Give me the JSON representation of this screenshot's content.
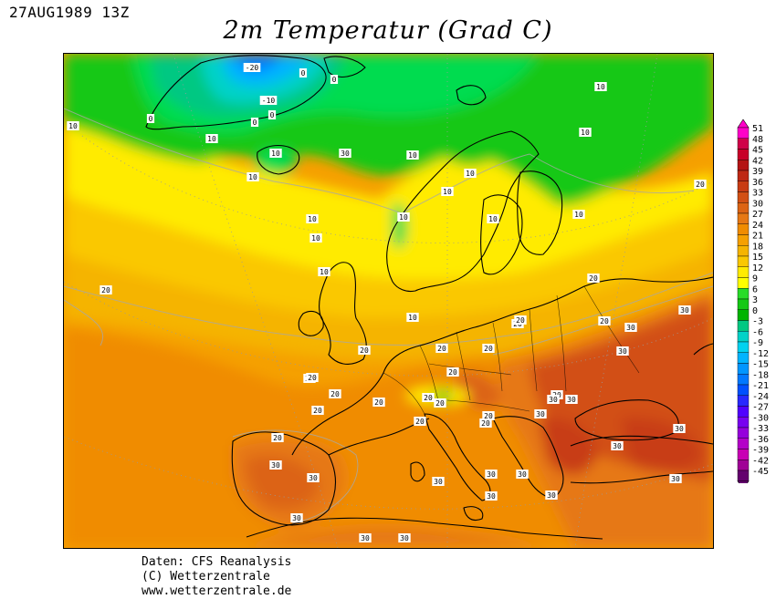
{
  "header": {
    "timestamp": "27AUG1989 13Z",
    "title": "2m Temperatur (Grad C)"
  },
  "map": {
    "region": "Europe",
    "variable": "2m temperature",
    "unit": "Grad C",
    "contour_labels": [
      "-20",
      "-10",
      "0",
      "0",
      "0",
      "0",
      "0",
      "10",
      "10",
      "10",
      "10",
      "10",
      "10",
      "10",
      "10",
      "10",
      "10",
      "10",
      "10",
      "10",
      "10",
      "10",
      "10",
      "20",
      "20",
      "20",
      "20",
      "20",
      "20",
      "20",
      "20",
      "20",
      "20",
      "20",
      "20",
      "20",
      "20",
      "20",
      "20",
      "20",
      "20",
      "20",
      "20",
      "20",
      "20",
      "30",
      "30",
      "30",
      "30",
      "30",
      "30",
      "30",
      "30",
      "30",
      "30",
      "30",
      "30",
      "30",
      "30",
      "30",
      "30",
      "30",
      "30",
      "30",
      "30"
    ]
  },
  "legend": {
    "values": [
      "51",
      "48",
      "45",
      "42",
      "39",
      "36",
      "33",
      "30",
      "27",
      "24",
      "21",
      "18",
      "15",
      "12",
      "9",
      "6",
      "3",
      "0",
      "-3",
      "-6",
      "-9",
      "-12",
      "-15",
      "-18",
      "-21",
      "-24",
      "-27",
      "-30",
      "-33",
      "-36",
      "-39",
      "-42",
      "-45"
    ],
    "colors": [
      "#ff00c8",
      "#d00048",
      "#c80028",
      "#b41414",
      "#be2814",
      "#c83c14",
      "#d25014",
      "#dc6414",
      "#e67814",
      "#f08c00",
      "#f5a000",
      "#f5b400",
      "#fac800",
      "#ffeb00",
      "#ffff00",
      "#28dc28",
      "#14c814",
      "#00b400",
      "#00c882",
      "#00d2c8",
      "#00d2f0",
      "#00b4ff",
      "#0096ff",
      "#0078ff",
      "#0050ff",
      "#2828ff",
      "#5000ff",
      "#7800f0",
      "#9600dc",
      "#b400c8",
      "#c800b4",
      "#a00096",
      "#64006e"
    ]
  },
  "footer": {
    "line1": "Daten: CFS Reanalysis",
    "line2": "(C) Wetterzentrale",
    "line3": "www.wetterzentrale.de"
  }
}
